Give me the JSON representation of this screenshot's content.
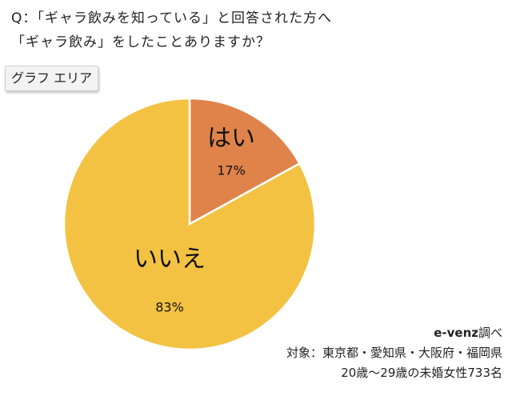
{
  "question": {
    "line1": "Q：「ギャラ飲みを知っている」と回答された方へ",
    "line2": "「ギャラ飲み」をしたことありますか？"
  },
  "graph_area_label": "グラフ エリア",
  "chart_data": {
    "type": "pie",
    "title": "",
    "slices": [
      {
        "label": "はい",
        "value": 17,
        "value_label": "17%",
        "color": "#e0834a"
      },
      {
        "label": "いいえ",
        "value": 83,
        "value_label": "83%",
        "color": "#f4c242"
      }
    ],
    "start": "12 o'clock",
    "direction": "clockwise",
    "slice_border_color": "#ffffff"
  },
  "credit": {
    "brand": "e-venz",
    "suffix": "調べ",
    "target": "対象：東京都・愛知県・大阪府・福岡県",
    "sample": "20歳〜29歳の未婚女性733名"
  }
}
